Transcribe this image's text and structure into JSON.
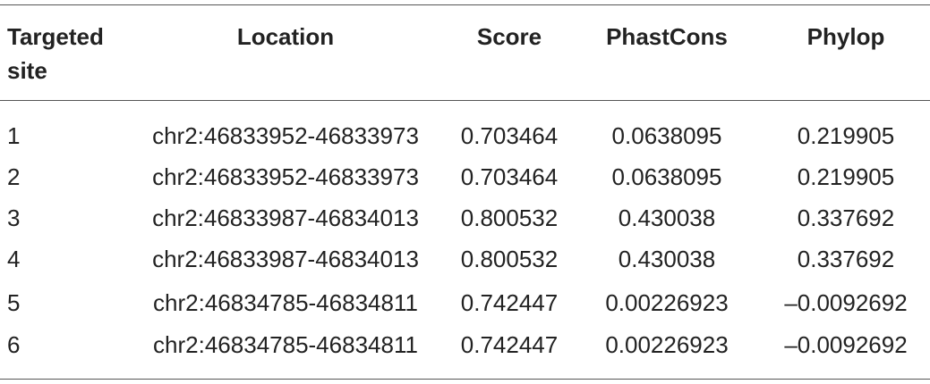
{
  "table": {
    "header": [
      "Targeted site",
      "Location",
      "Score",
      "PhastCons",
      "Phylop"
    ],
    "rows": [
      [
        "1",
        "chr2:46833952-46833973",
        "0.703464",
        "0.0638095",
        "0.219905"
      ],
      [
        "2",
        "chr2:46833952-46833973",
        "0.703464",
        "0.0638095",
        "0.219905"
      ],
      [
        "3",
        "chr2:46833987-46834013",
        "0.800532",
        "0.430038",
        "0.337692"
      ],
      [
        "4",
        "chr2:46833987-46834013",
        "0.800532",
        "0.430038",
        "0.337692"
      ],
      [
        "5",
        "chr2:46834785-46834811",
        "0.742447",
        "0.00226923",
        "–0.0092692"
      ],
      [
        "6",
        "chr2:46834785-46834811",
        "0.742447",
        "0.00226923",
        "–0.0092692"
      ]
    ]
  }
}
